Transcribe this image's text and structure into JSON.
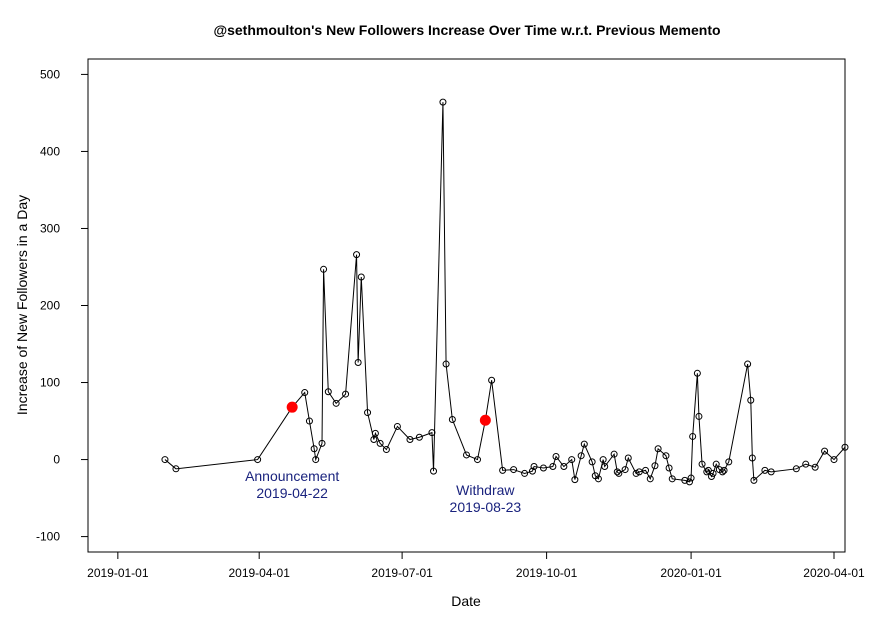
{
  "chart_data": {
    "type": "line",
    "title": "@sethmoulton's New Followers Increase Over Time w.r.t. Previous Memento",
    "xlabel": "Date",
    "ylabel": "Increase of New Followers in a Day",
    "x_axis_type": "date",
    "xlim": [
      "2018-12-13",
      "2020-04-08"
    ],
    "ylim": [
      -120,
      520
    ],
    "x_ticks": [
      "2019-01-01",
      "2019-04-01",
      "2019-07-01",
      "2019-10-01",
      "2020-01-01",
      "2020-04-01"
    ],
    "y_ticks": [
      -100,
      0,
      100,
      200,
      300,
      400,
      500
    ],
    "grid": false,
    "legend": "none",
    "series": [
      {
        "marker": "open-circle",
        "color": "#000000",
        "points": [
          {
            "x": "2019-01-31",
            "y": 0
          },
          {
            "x": "2019-02-07",
            "y": -12
          },
          {
            "x": "2019-03-31",
            "y": 0
          },
          {
            "x": "2019-04-22",
            "y": 68
          },
          {
            "x": "2019-04-30",
            "y": 87
          },
          {
            "x": "2019-05-03",
            "y": 50
          },
          {
            "x": "2019-05-06",
            "y": 14
          },
          {
            "x": "2019-05-07",
            "y": 0
          },
          {
            "x": "2019-05-11",
            "y": 21
          },
          {
            "x": "2019-05-12",
            "y": 247
          },
          {
            "x": "2019-05-15",
            "y": 88
          },
          {
            "x": "2019-05-20",
            "y": 73
          },
          {
            "x": "2019-05-26",
            "y": 85
          },
          {
            "x": "2019-06-02",
            "y": 266
          },
          {
            "x": "2019-06-03",
            "y": 126
          },
          {
            "x": "2019-06-05",
            "y": 237
          },
          {
            "x": "2019-06-09",
            "y": 61
          },
          {
            "x": "2019-06-13",
            "y": 26
          },
          {
            "x": "2019-06-14",
            "y": 34
          },
          {
            "x": "2019-06-17",
            "y": 21
          },
          {
            "x": "2019-06-21",
            "y": 13
          },
          {
            "x": "2019-06-28",
            "y": 43
          },
          {
            "x": "2019-07-06",
            "y": 26
          },
          {
            "x": "2019-07-12",
            "y": 29
          },
          {
            "x": "2019-07-20",
            "y": 35
          },
          {
            "x": "2019-07-21",
            "y": -15
          },
          {
            "x": "2019-07-27",
            "y": 464
          },
          {
            "x": "2019-07-29",
            "y": 124
          },
          {
            "x": "2019-08-02",
            "y": 52
          },
          {
            "x": "2019-08-11",
            "y": 6
          },
          {
            "x": "2019-08-18",
            "y": 0
          },
          {
            "x": "2019-08-23",
            "y": 51
          },
          {
            "x": "2019-08-27",
            "y": 103
          },
          {
            "x": "2019-09-03",
            "y": -14
          },
          {
            "x": "2019-09-10",
            "y": -13
          },
          {
            "x": "2019-09-17",
            "y": -18
          },
          {
            "x": "2019-09-22",
            "y": -15
          },
          {
            "x": "2019-09-23",
            "y": -9
          },
          {
            "x": "2019-09-29",
            "y": -11
          },
          {
            "x": "2019-10-05",
            "y": -9
          },
          {
            "x": "2019-10-07",
            "y": 4
          },
          {
            "x": "2019-10-12",
            "y": -9
          },
          {
            "x": "2019-10-17",
            "y": 0
          },
          {
            "x": "2019-10-19",
            "y": -26
          },
          {
            "x": "2019-10-23",
            "y": 5
          },
          {
            "x": "2019-10-25",
            "y": 20
          },
          {
            "x": "2019-10-30",
            "y": -3
          },
          {
            "x": "2019-11-01",
            "y": -21
          },
          {
            "x": "2019-11-03",
            "y": -25
          },
          {
            "x": "2019-11-06",
            "y": 0
          },
          {
            "x": "2019-11-07",
            "y": -9
          },
          {
            "x": "2019-11-13",
            "y": 7
          },
          {
            "x": "2019-11-15",
            "y": -16
          },
          {
            "x": "2019-11-16",
            "y": -18
          },
          {
            "x": "2019-11-20",
            "y": -13
          },
          {
            "x": "2019-11-22",
            "y": 2
          },
          {
            "x": "2019-11-27",
            "y": -18
          },
          {
            "x": "2019-11-29",
            "y": -16
          },
          {
            "x": "2019-12-03",
            "y": -14
          },
          {
            "x": "2019-12-06",
            "y": -25
          },
          {
            "x": "2019-12-09",
            "y": -8
          },
          {
            "x": "2019-12-11",
            "y": 14
          },
          {
            "x": "2019-12-16",
            "y": 5
          },
          {
            "x": "2019-12-18",
            "y": -11
          },
          {
            "x": "2019-12-20",
            "y": -25
          },
          {
            "x": "2019-12-28",
            "y": -27
          },
          {
            "x": "2019-12-31",
            "y": -29
          },
          {
            "x": "2020-01-01",
            "y": -24
          },
          {
            "x": "2020-01-02",
            "y": 30
          },
          {
            "x": "2020-01-05",
            "y": 112
          },
          {
            "x": "2020-01-06",
            "y": 56
          },
          {
            "x": "2020-01-08",
            "y": -6
          },
          {
            "x": "2020-01-11",
            "y": -16
          },
          {
            "x": "2020-01-12",
            "y": -14
          },
          {
            "x": "2020-01-14",
            "y": -22
          },
          {
            "x": "2020-01-15",
            "y": -18
          },
          {
            "x": "2020-01-17",
            "y": -6
          },
          {
            "x": "2020-01-19",
            "y": -13
          },
          {
            "x": "2020-01-21",
            "y": -16
          },
          {
            "x": "2020-01-22",
            "y": -14
          },
          {
            "x": "2020-01-25",
            "y": -3
          },
          {
            "x": "2020-02-06",
            "y": 124
          },
          {
            "x": "2020-02-08",
            "y": 77
          },
          {
            "x": "2020-02-09",
            "y": 2
          },
          {
            "x": "2020-02-10",
            "y": -27
          },
          {
            "x": "2020-02-17",
            "y": -14
          },
          {
            "x": "2020-02-21",
            "y": -16
          },
          {
            "x": "2020-03-08",
            "y": -12
          },
          {
            "x": "2020-03-14",
            "y": -6
          },
          {
            "x": "2020-03-20",
            "y": -10
          },
          {
            "x": "2020-03-26",
            "y": 11
          },
          {
            "x": "2020-04-01",
            "y": 0
          },
          {
            "x": "2020-04-08",
            "y": 16
          }
        ]
      }
    ],
    "highlights": [
      {
        "x": "2019-04-22",
        "y": 68,
        "color": "#ff0000"
      },
      {
        "x": "2019-08-23",
        "y": 51,
        "color": "#ff0000"
      }
    ],
    "annotations": [
      {
        "text": "Announcement",
        "date_text": "2019-04-22",
        "x": "2019-04-22",
        "y": -28,
        "color": "#1a237e"
      },
      {
        "text": "Withdraw",
        "date_text": "2019-08-23",
        "x": "2019-08-23",
        "y": -46,
        "color": "#1a237e"
      }
    ]
  }
}
